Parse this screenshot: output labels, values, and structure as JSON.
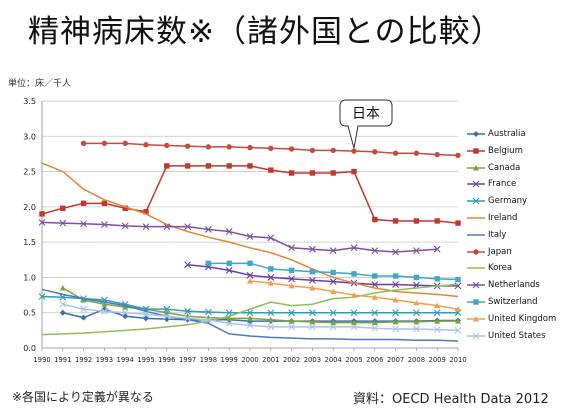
{
  "title": "精神病床数※（諸外国との比較）",
  "unit_label": "単位：床／千人",
  "footnote": "※各国により定義が異なる",
  "source": "資料：OECD Health Data 2012",
  "callout": "日本",
  "chart_data": {
    "type": "line",
    "x": [
      1990,
      1991,
      1992,
      1993,
      1994,
      1995,
      1996,
      1997,
      1998,
      1999,
      2000,
      2001,
      2002,
      2003,
      2004,
      2005,
      2006,
      2007,
      2008,
      2009,
      2010
    ],
    "xlabels": [
      "1990",
      "1991",
      "1992",
      "1993",
      "1994",
      "1995",
      "1996",
      "1997",
      "1998",
      "1999",
      "2000",
      "2001",
      "2002",
      "2003",
      "2004",
      "2005",
      "2006",
      "2007",
      "2008",
      "2009",
      "2010"
    ],
    "ylim": [
      0,
      3.5
    ],
    "yticks": [
      "0.0",
      "0.5",
      "1.0",
      "1.5",
      "2.0",
      "2.5",
      "3.0",
      "3.5"
    ],
    "legend_position": "right",
    "series": [
      {
        "name": "Australia",
        "color": "#3a6fb0",
        "marker": "diamond",
        "values": [
          null,
          0.5,
          0.43,
          0.55,
          0.45,
          0.42,
          0.41,
          0.4,
          0.4,
          0.4,
          0.38,
          0.38,
          0.38,
          0.38,
          0.38,
          0.38,
          0.38,
          0.38,
          0.38,
          0.39,
          0.39
        ]
      },
      {
        "name": "Belgium",
        "color": "#c0392b",
        "marker": "square",
        "values": [
          1.9,
          1.98,
          2.05,
          2.05,
          1.98,
          1.93,
          2.58,
          2.58,
          2.58,
          2.58,
          2.58,
          2.52,
          2.48,
          2.48,
          2.48,
          2.5,
          1.82,
          1.8,
          1.8,
          1.8,
          1.77
        ]
      },
      {
        "name": "Canada",
        "color": "#7aa33a",
        "marker": "triangle",
        "values": [
          null,
          0.85,
          0.68,
          0.62,
          0.58,
          0.55,
          0.5,
          0.45,
          0.43,
          0.42,
          0.42,
          0.4,
          0.38,
          0.37,
          0.36,
          0.36,
          0.36,
          0.37,
          0.37,
          0.38,
          0.38
        ]
      },
      {
        "name": "France",
        "color": "#6b3fa0",
        "marker": "x",
        "values": [
          null,
          null,
          null,
          null,
          null,
          null,
          null,
          1.18,
          1.15,
          1.1,
          1.03,
          1.0,
          0.98,
          0.96,
          0.94,
          0.92,
          0.9,
          0.9,
          0.89,
          0.88,
          0.88
        ]
      },
      {
        "name": "Germany",
        "color": "#2e9cb5",
        "marker": "x",
        "values": [
          0.73,
          0.72,
          0.7,
          0.68,
          0.62,
          0.55,
          0.55,
          0.52,
          0.51,
          0.5,
          0.5,
          0.5,
          0.5,
          0.5,
          0.5,
          0.5,
          0.5,
          0.5,
          0.5,
          0.5,
          0.5
        ]
      },
      {
        "name": "Ireland",
        "color": "#e6862e",
        "marker": "none",
        "values": [
          2.62,
          2.5,
          2.25,
          2.1,
          2.0,
          1.9,
          1.75,
          1.65,
          1.57,
          1.5,
          1.42,
          1.35,
          1.25,
          1.12,
          1.0,
          0.92,
          0.85,
          0.8,
          0.78,
          0.76,
          0.73
        ]
      },
      {
        "name": "Italy",
        "color": "#4a7ac7",
        "marker": "none",
        "values": [
          0.83,
          0.76,
          0.7,
          0.65,
          0.6,
          0.52,
          0.45,
          0.4,
          0.35,
          0.2,
          0.17,
          0.15,
          0.14,
          0.13,
          0.13,
          0.12,
          0.12,
          0.12,
          0.11,
          0.11,
          0.1
        ]
      },
      {
        "name": "Japan",
        "color": "#c84a3a",
        "marker": "circle",
        "values": [
          null,
          null,
          2.9,
          2.9,
          2.9,
          2.88,
          2.87,
          2.86,
          2.85,
          2.85,
          2.84,
          2.83,
          2.82,
          2.8,
          2.8,
          2.79,
          2.78,
          2.76,
          2.76,
          2.74,
          2.73
        ]
      },
      {
        "name": "Korea",
        "color": "#8cc152",
        "marker": "none",
        "values": [
          0.19,
          0.2,
          0.21,
          0.23,
          0.25,
          0.27,
          0.3,
          0.33,
          0.38,
          0.45,
          0.55,
          0.65,
          0.6,
          0.62,
          0.7,
          0.72,
          0.78,
          0.82,
          0.85,
          0.88,
          0.9
        ]
      },
      {
        "name": "Netherlands",
        "color": "#7d4fa8",
        "marker": "x",
        "values": [
          1.78,
          1.77,
          1.76,
          1.75,
          1.73,
          1.72,
          1.72,
          1.72,
          1.68,
          1.65,
          1.58,
          1.56,
          1.42,
          1.4,
          1.38,
          1.42,
          1.38,
          1.36,
          1.38,
          1.4,
          null
        ]
      },
      {
        "name": "Switzerland",
        "color": "#3fa7c7",
        "marker": "square",
        "values": [
          null,
          null,
          null,
          null,
          null,
          null,
          null,
          null,
          1.2,
          1.2,
          1.2,
          1.12,
          1.1,
          1.08,
          1.07,
          1.05,
          1.02,
          1.02,
          1.0,
          0.98,
          0.97
        ]
      },
      {
        "name": "United Kingdom",
        "color": "#f0a04b",
        "marker": "triangle",
        "values": [
          null,
          null,
          null,
          null,
          null,
          null,
          null,
          null,
          null,
          null,
          0.95,
          0.92,
          0.88,
          0.85,
          0.8,
          0.75,
          0.72,
          0.68,
          0.64,
          0.6,
          0.55
        ]
      },
      {
        "name": "United States",
        "color": "#a9c4e8",
        "marker": "x",
        "values": [
          null,
          0.62,
          0.55,
          0.52,
          0.5,
          0.48,
          0.45,
          0.42,
          0.4,
          0.35,
          0.32,
          0.3,
          0.3,
          0.3,
          0.3,
          0.3,
          0.28,
          0.27,
          0.27,
          0.26,
          0.25
        ]
      }
    ]
  }
}
